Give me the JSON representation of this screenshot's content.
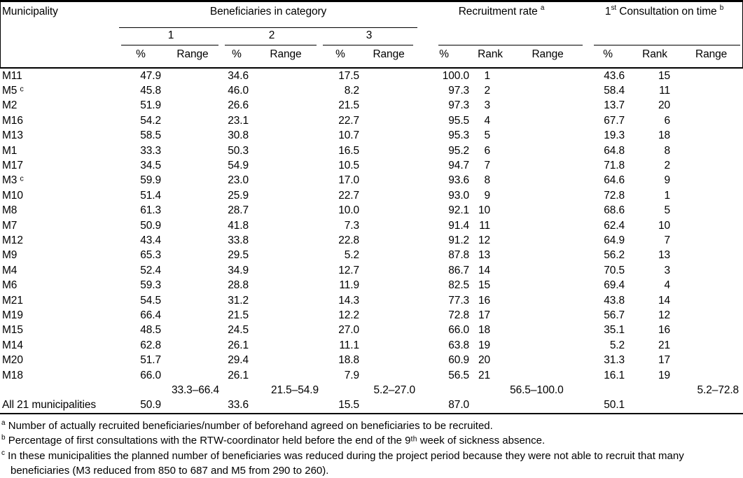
{
  "table": {
    "header": {
      "municipality": "Municipality",
      "beneficiaries": "Beneficiaries in category",
      "recruitment": {
        "label": "Recruitment rate",
        "sup": "a"
      },
      "consultation": {
        "prefix": "1",
        "prefix_sup": "st",
        "label": "Consultation on time",
        "sup": "b"
      },
      "cat1": "1",
      "cat2": "2",
      "cat3": "3",
      "pct": "%",
      "range": "Range",
      "rank": "Rank"
    },
    "rows": [
      [
        "M11",
        "47.9",
        "",
        "34.6",
        "",
        "17.5",
        "",
        "100.0",
        "1",
        "",
        "43.6",
        "15",
        ""
      ],
      [
        "M5 ᶜ",
        "45.8",
        "",
        "46.0",
        "",
        "8.2",
        "",
        "97.3",
        "2",
        "",
        "58.4",
        "11",
        ""
      ],
      [
        "M2",
        "51.9",
        "",
        "26.6",
        "",
        "21.5",
        "",
        "97.3",
        "3",
        "",
        "13.7",
        "20",
        ""
      ],
      [
        "M16",
        "54.2",
        "",
        "23.1",
        "",
        "22.7",
        "",
        "95.5",
        "4",
        "",
        "67.7",
        "6",
        ""
      ],
      [
        "M13",
        "58.5",
        "",
        "30.8",
        "",
        "10.7",
        "",
        "95.3",
        "5",
        "",
        "19.3",
        "18",
        ""
      ],
      [
        "M1",
        "33.3",
        "",
        "50.3",
        "",
        "16.5",
        "",
        "95.2",
        "6",
        "",
        "64.8",
        "8",
        ""
      ],
      [
        "M17",
        "34.5",
        "",
        "54.9",
        "",
        "10.5",
        "",
        "94.7",
        "7",
        "",
        "71.8",
        "2",
        ""
      ],
      [
        "M3 ᶜ",
        "59.9",
        "",
        "23.0",
        "",
        "17.0",
        "",
        "93.6",
        "8",
        "",
        "64.6",
        "9",
        ""
      ],
      [
        "M10",
        "51.4",
        "",
        "25.9",
        "",
        "22.7",
        "",
        "93.0",
        "9",
        "",
        "72.8",
        "1",
        ""
      ],
      [
        "M8",
        "61.3",
        "",
        "28.7",
        "",
        "10.0",
        "",
        "92.1",
        "10",
        "",
        "68.6",
        "5",
        ""
      ],
      [
        "M7",
        "50.9",
        "",
        "41.8",
        "",
        "7.3",
        "",
        "91.4",
        "11",
        "",
        "62.4",
        "10",
        ""
      ],
      [
        "M12",
        "43.4",
        "",
        "33.8",
        "",
        "22.8",
        "",
        "91.2",
        "12",
        "",
        "64.9",
        "7",
        ""
      ],
      [
        "M9",
        "65.3",
        "",
        "29.5",
        "",
        "5.2",
        "",
        "87.8",
        "13",
        "",
        "56.2",
        "13",
        ""
      ],
      [
        "M4",
        "52.4",
        "",
        "34.9",
        "",
        "12.7",
        "",
        "86.7",
        "14",
        "",
        "70.5",
        "3",
        ""
      ],
      [
        "M6",
        "59.3",
        "",
        "28.8",
        "",
        "11.9",
        "",
        "82.5",
        "15",
        "",
        "69.4",
        "4",
        ""
      ],
      [
        "M21",
        "54.5",
        "",
        "31.2",
        "",
        "14.3",
        "",
        "77.3",
        "16",
        "",
        "43.8",
        "14",
        ""
      ],
      [
        "M19",
        "66.4",
        "",
        "21.5",
        "",
        "12.2",
        "",
        "72.8",
        "17",
        "",
        "56.7",
        "12",
        ""
      ],
      [
        "M15",
        "48.5",
        "",
        "24.5",
        "",
        "27.0",
        "",
        "66.0",
        "18",
        "",
        "35.1",
        "16",
        ""
      ],
      [
        "M14",
        "62.8",
        "",
        "26.1",
        "",
        "11.1",
        "",
        "63.8",
        "19",
        "",
        "5.2",
        "21",
        ""
      ],
      [
        "M20",
        "51.7",
        "",
        "29.4",
        "",
        "18.8",
        "",
        "60.9",
        "20",
        "",
        "31.3",
        "17",
        ""
      ],
      [
        "M18",
        "66.0",
        "",
        "26.1",
        "",
        "7.9",
        "",
        "56.5",
        "21",
        "",
        "16.1",
        "19",
        ""
      ]
    ],
    "range_row": [
      "",
      "",
      "33.3–66.4",
      "",
      "21.5–54.9",
      "",
      "5.2–27.0",
      "",
      "",
      "56.5–100.0",
      "",
      "",
      "5.2–72.8"
    ],
    "total_row": [
      "All 21 municipalities",
      "50.9",
      "",
      "33.6",
      "",
      "15.5",
      "",
      "87.0",
      "",
      "",
      "50.1",
      "",
      ""
    ]
  },
  "footnotes": [
    {
      "marker": "a",
      "text": "Number of actually recruited beneficiaries/number of beforehand agreed on beneficiaries to be recruited."
    },
    {
      "marker": "b",
      "text": "Percentage of first consultations with the RTW-coordinator held before the end of the 9ᵗʰ week of sickness absence."
    },
    {
      "marker": "c",
      "text": "In these municipalities the planned number of beneficiaries was reduced during the project period because they were not able to recruit that many beneficiaries (M3 reduced from 850 to 687 and M5 from 290 to 260)."
    }
  ]
}
